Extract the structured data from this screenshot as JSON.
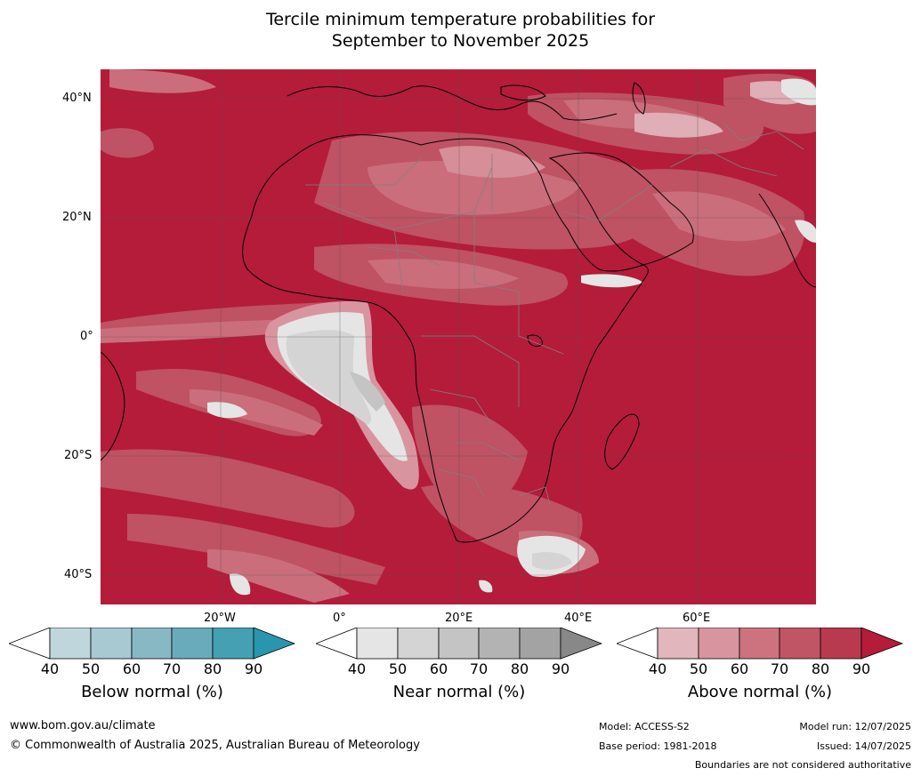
{
  "title_line1": "Tercile minimum temperature probabilities for",
  "title_line2": "September to November 2025",
  "map": {
    "lat_labels": [
      "40°N",
      "20°N",
      "0°",
      "20°S",
      "40°S"
    ],
    "lon_labels": [
      "20°W",
      "0°",
      "20°E",
      "40°E",
      "60°E"
    ],
    "background_color": "#b41c3a"
  },
  "colorbars": [
    {
      "name": "Below normal (%)",
      "ticks": [
        "40",
        "50",
        "60",
        "70",
        "80",
        "90"
      ],
      "colors": [
        "#ffffff",
        "#bfd6dd",
        "#a7c9d1",
        "#88b8c4",
        "#6aabbb",
        "#45a0b2",
        "#2a96ad"
      ]
    },
    {
      "name": "Near normal (%)",
      "ticks": [
        "40",
        "50",
        "60",
        "70",
        "80",
        "90"
      ],
      "colors": [
        "#ffffff",
        "#e5e5e5",
        "#d4d4d4",
        "#c4c4c4",
        "#b3b3b3",
        "#a3a3a3",
        "#888888"
      ]
    },
    {
      "name": "Above normal (%)",
      "ticks": [
        "40",
        "50",
        "60",
        "70",
        "80",
        "90"
      ],
      "colors": [
        "#ffffff",
        "#e2b6bd",
        "#d8959f",
        "#cc737f",
        "#c05566",
        "#b73a4f",
        "#b41c3a"
      ]
    }
  ],
  "footer": {
    "website": "www.bom.gov.au/climate",
    "copyright": "© Commonwealth of Australia 2025, Australian Bureau of Meteorology",
    "model": "Model: ACCESS-S2",
    "base_period": "Base period: 1981-2018",
    "model_run": "Model run: 12/07/2025",
    "issued": "Issued: 14/07/2025",
    "disclaimer": "Boundaries are not considered authoritative"
  }
}
